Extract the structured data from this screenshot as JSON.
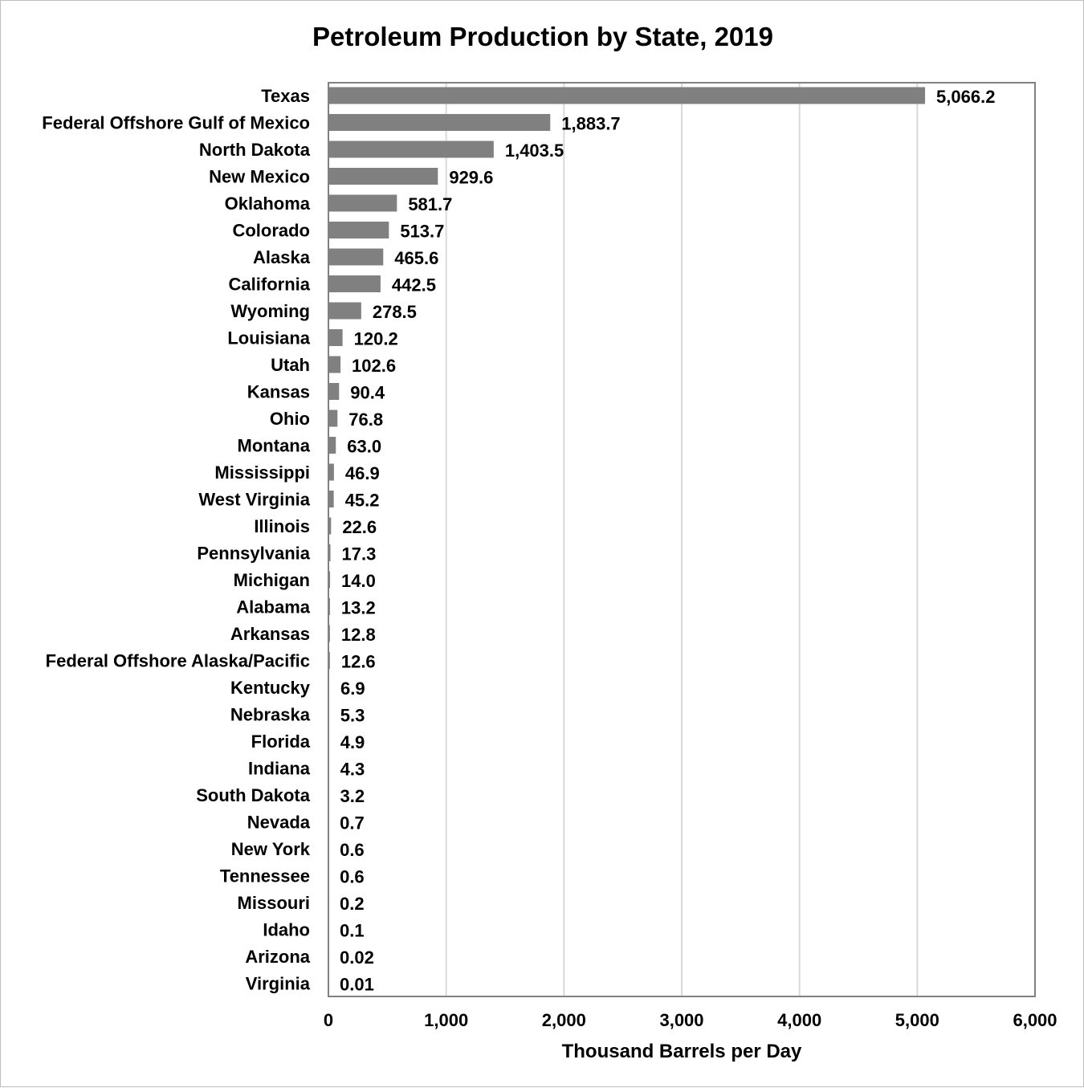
{
  "chart_data": {
    "type": "bar",
    "orientation": "horizontal",
    "title": "Petroleum Production by State, 2019",
    "xlabel": "Thousand Barrels per Day",
    "ylabel": "",
    "xlim": [
      0,
      6000
    ],
    "xticks": [
      0,
      1000,
      2000,
      3000,
      4000,
      5000,
      6000
    ],
    "xtick_labels": [
      "0",
      "1,000",
      "2,000",
      "3,000",
      "4,000",
      "5,000",
      "6,000"
    ],
    "grid": true,
    "legend": "none",
    "bar_color": "#808080",
    "gridline_color": "#d9d9d9",
    "frame_color": "#808080",
    "categories": [
      "Texas",
      "Federal Offshore Gulf of Mexico",
      "North Dakota",
      "New Mexico",
      "Oklahoma",
      "Colorado",
      "Alaska",
      "California",
      "Wyoming",
      "Louisiana",
      "Utah",
      "Kansas",
      "Ohio",
      "Montana",
      "Mississippi",
      "West Virginia",
      "Illinois",
      "Pennsylvania",
      "Michigan",
      "Alabama",
      "Arkansas",
      "Federal Offshore Alaska/Pacific",
      "Kentucky",
      "Nebraska",
      "Florida",
      "Indiana",
      "South Dakota",
      "Nevada",
      "New York",
      "Tennessee",
      "Missouri",
      "Idaho",
      "Arizona",
      "Virginia"
    ],
    "values": [
      5066.2,
      1883.7,
      1403.5,
      929.6,
      581.7,
      513.7,
      465.6,
      442.5,
      278.5,
      120.2,
      102.6,
      90.4,
      76.8,
      63.0,
      46.9,
      45.2,
      22.6,
      17.3,
      14.0,
      13.2,
      12.8,
      12.6,
      6.9,
      5.3,
      4.9,
      4.3,
      3.2,
      0.7,
      0.6,
      0.6,
      0.2,
      0.1,
      0.02,
      0.01
    ],
    "value_labels": [
      "5,066.2",
      "1,883.7",
      "1,403.5",
      "929.6",
      "581.7",
      "513.7",
      "465.6",
      "442.5",
      "278.5",
      "120.2",
      "102.6",
      "90.4",
      "76.8",
      "63.0",
      "46.9",
      "45.2",
      "22.6",
      "17.3",
      "14.0",
      "13.2",
      "12.8",
      "12.6",
      "6.9",
      "5.3",
      "4.9",
      "4.3",
      "3.2",
      "0.7",
      "0.6",
      "0.6",
      "0.2",
      "0.1",
      "0.02",
      "0.01"
    ]
  }
}
